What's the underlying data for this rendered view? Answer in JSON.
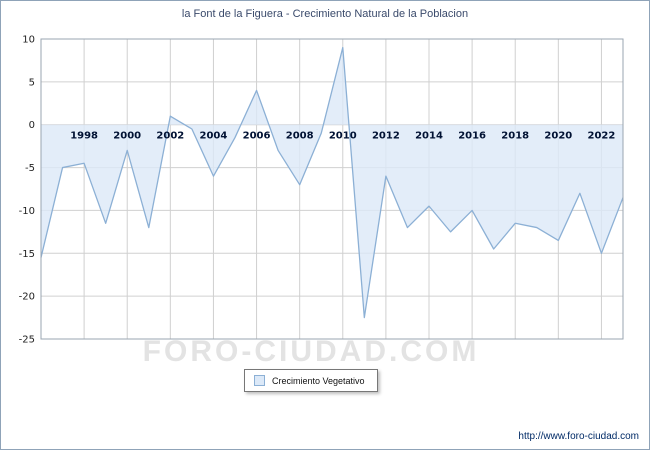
{
  "window": {
    "title": "la Font de la Figuera - Crecimiento Natural de la Poblacion"
  },
  "chart_data": {
    "type": "area",
    "title": "la Font de la Figuera - Crecimiento Natural de la Poblacion",
    "x": [
      1996,
      1997,
      1998,
      1999,
      2000,
      2001,
      2002,
      2003,
      2004,
      2005,
      2006,
      2007,
      2008,
      2009,
      2010,
      2011,
      2012,
      2013,
      2014,
      2015,
      2016,
      2017,
      2018,
      2019,
      2020,
      2021,
      2022,
      2023
    ],
    "series": [
      {
        "name": "Crecimiento Vegetativo",
        "values": [
          -15.5,
          -5,
          -4.5,
          -11.5,
          -3,
          -12,
          1,
          -0.5,
          -6,
          -1.5,
          4,
          -3,
          -7,
          -1,
          9,
          -22.5,
          -6,
          -12,
          -9.5,
          -12.5,
          -10,
          -14.5,
          -11.5,
          -12,
          -13.5,
          -8,
          -15,
          -8.5
        ]
      }
    ],
    "xlabel": "",
    "ylabel": "",
    "ylim": [
      -25,
      10
    ],
    "yticks": [
      10,
      5,
      0,
      -5,
      -10,
      -15,
      -20,
      -25
    ],
    "xticks": [
      1998,
      2000,
      2002,
      2004,
      2006,
      2008,
      2010,
      2012,
      2014,
      2016,
      2018,
      2020,
      2022
    ],
    "baseline": 0,
    "grid": true,
    "legend_position": "bottom",
    "colors": {
      "line": "#8cb0d5",
      "fill": "#dce9f8",
      "grid": "#d0d0d0",
      "border": "#9aa5b1",
      "ytick_text": "#222222",
      "xtick_text": "#001133"
    }
  },
  "legend": {
    "label": "Crecimiento Vegetativo"
  },
  "watermark": "FORO-CIUDAD.COM",
  "footer": {
    "url": "http://www.foro-ciudad.com"
  }
}
